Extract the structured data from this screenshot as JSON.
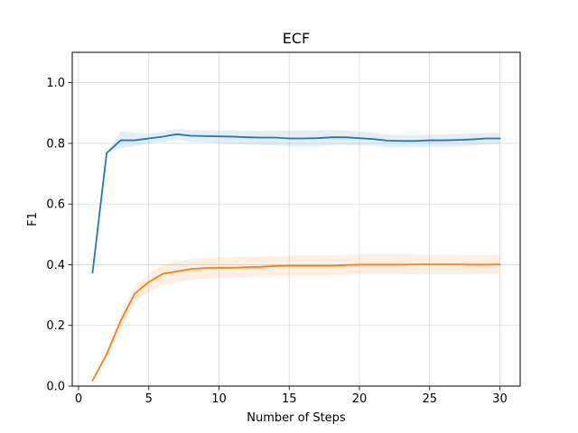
{
  "chart_data": {
    "type": "line",
    "title": "ECF",
    "xlabel": "Number of Steps",
    "ylabel": "F1",
    "xlim": [
      -0.45,
      31.45
    ],
    "ylim": [
      0.0,
      1.1
    ],
    "xticks": [
      0,
      5,
      10,
      15,
      20,
      25,
      30
    ],
    "yticks": [
      0.0,
      0.2,
      0.4,
      0.6,
      0.8,
      1.0
    ],
    "xtick_labels": [
      "0",
      "5",
      "10",
      "15",
      "20",
      "25",
      "30"
    ],
    "ytick_labels": [
      "0.0",
      "0.2",
      "0.4",
      "0.6",
      "0.8",
      "1.0"
    ],
    "grid": true,
    "x": [
      1,
      2,
      3,
      4,
      5,
      6,
      7,
      8,
      9,
      10,
      11,
      12,
      13,
      14,
      15,
      16,
      17,
      18,
      19,
      20,
      21,
      22,
      23,
      24,
      25,
      26,
      27,
      28,
      29,
      30
    ],
    "series": [
      {
        "color": "#1f77b4",
        "values": [
          0.375,
          0.768,
          0.81,
          0.81,
          0.816,
          0.822,
          0.83,
          0.825,
          0.824,
          0.823,
          0.822,
          0.82,
          0.819,
          0.819,
          0.816,
          0.816,
          0.817,
          0.82,
          0.82,
          0.817,
          0.814,
          0.809,
          0.808,
          0.808,
          0.81,
          0.81,
          0.811,
          0.813,
          0.816,
          0.816
        ],
        "lower": [
          0.375,
          0.768,
          0.785,
          0.79,
          0.8,
          0.805,
          0.812,
          0.806,
          0.803,
          0.8,
          0.798,
          0.796,
          0.794,
          0.793,
          0.79,
          0.79,
          0.791,
          0.794,
          0.795,
          0.793,
          0.792,
          0.788,
          0.787,
          0.787,
          0.789,
          0.789,
          0.79,
          0.792,
          0.796,
          0.797
        ],
        "upper": [
          0.375,
          0.768,
          0.84,
          0.835,
          0.832,
          0.838,
          0.848,
          0.843,
          0.843,
          0.843,
          0.843,
          0.842,
          0.842,
          0.843,
          0.842,
          0.842,
          0.843,
          0.844,
          0.843,
          0.839,
          0.834,
          0.828,
          0.828,
          0.828,
          0.83,
          0.83,
          0.831,
          0.832,
          0.834,
          0.834
        ]
      },
      {
        "color": "#ff7f0e",
        "values": [
          0.018,
          0.105,
          0.215,
          0.305,
          0.343,
          0.37,
          0.378,
          0.386,
          0.389,
          0.39,
          0.39,
          0.392,
          0.393,
          0.396,
          0.397,
          0.397,
          0.397,
          0.397,
          0.399,
          0.4,
          0.4,
          0.4,
          0.4,
          0.401,
          0.401,
          0.401,
          0.401,
          0.4,
          0.4,
          0.401
        ],
        "lower": [
          0.018,
          0.1,
          0.19,
          0.275,
          0.31,
          0.335,
          0.343,
          0.35,
          0.354,
          0.356,
          0.358,
          0.36,
          0.362,
          0.364,
          0.365,
          0.366,
          0.366,
          0.366,
          0.367,
          0.368,
          0.368,
          0.368,
          0.368,
          0.369,
          0.369,
          0.369,
          0.369,
          0.369,
          0.369,
          0.37
        ],
        "upper": [
          0.018,
          0.115,
          0.235,
          0.33,
          0.37,
          0.4,
          0.41,
          0.418,
          0.422,
          0.424,
          0.425,
          0.426,
          0.427,
          0.429,
          0.429,
          0.43,
          0.431,
          0.432,
          0.433,
          0.434,
          0.435,
          0.435,
          0.435,
          0.434,
          0.434,
          0.434,
          0.433,
          0.432,
          0.432,
          0.432
        ]
      }
    ]
  }
}
